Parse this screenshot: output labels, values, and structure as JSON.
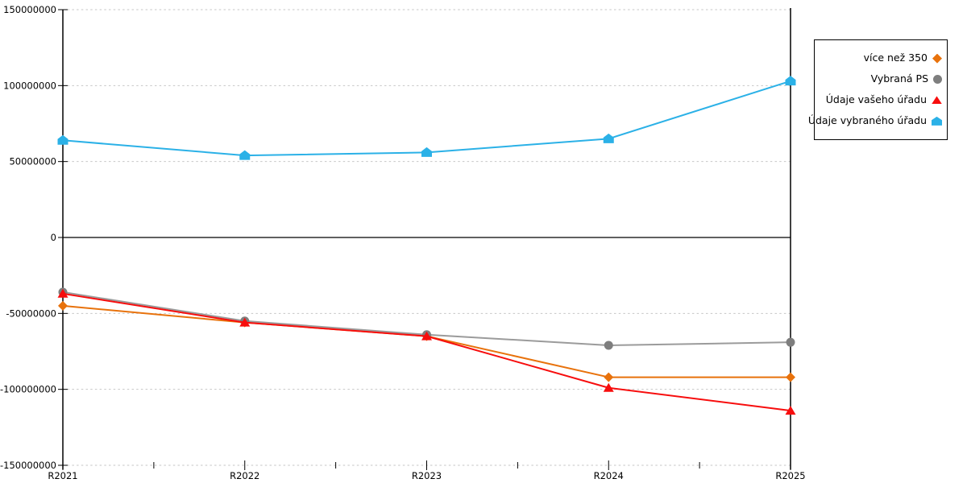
{
  "chart_data": {
    "type": "line",
    "title": "",
    "xlabel": "",
    "ylabel": "",
    "categories": [
      "R2021",
      "R2022",
      "R2023",
      "R2024",
      "R2025"
    ],
    "series": [
      {
        "name": "více než 350",
        "marker": "diamond",
        "color": "#E8720C",
        "values": [
          -45000000,
          -56000000,
          -65000000,
          -92000000,
          -92000000
        ]
      },
      {
        "name": "Vybraná PS",
        "marker": "circle",
        "color": "#7E7E7E",
        "line_color": "#9B9B9B",
        "values": [
          -36000000,
          -55000000,
          -64000000,
          -71000000,
          -69000000
        ]
      },
      {
        "name": "Údaje vašeho úřadu",
        "marker": "triangle",
        "color": "#F70D0D",
        "values": [
          -37000000,
          -56000000,
          -65000000,
          -99000000,
          -114000000
        ]
      },
      {
        "name": "Údaje vybraného úřadu",
        "marker": "pentagon",
        "color": "#2BB1E7",
        "values": [
          64000000,
          54000000,
          56000000,
          65000000,
          103000000
        ]
      }
    ],
    "ylim": [
      -150000000,
      150000000
    ],
    "y_ticks": [
      {
        "value": 150000000,
        "label": "150000000"
      },
      {
        "value": 100000000,
        "label": "100000000"
      },
      {
        "value": 50000000,
        "label": "50000000"
      },
      {
        "value": 0,
        "label": "0"
      },
      {
        "value": -50000000,
        "label": "-50000000"
      },
      {
        "value": -100000000,
        "label": "-100000000"
      },
      {
        "value": -150000000,
        "label": "-150000000"
      }
    ],
    "grid": "horizontal-dashed",
    "gridline_color": "#c6c6c6",
    "axis_color": "#000000",
    "legend_position": "top-right"
  }
}
